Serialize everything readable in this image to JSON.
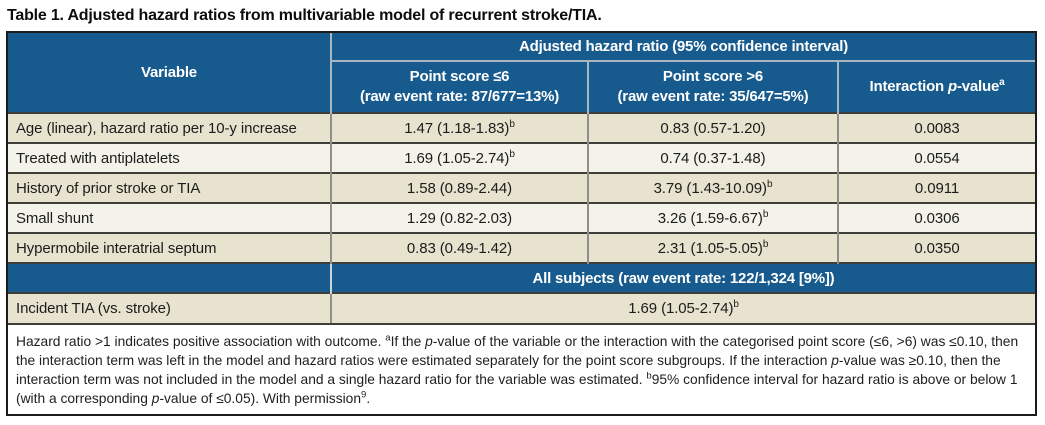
{
  "title": "Table 1. Adjusted hazard ratios from multivariable model of recurrent stroke/TIA.",
  "colors": {
    "header_blue": "#175a8e",
    "row_beige": "#e7e3ce",
    "row_offwhite": "#f4f3ea",
    "grid_dark": "#3f3f3a",
    "grid_gray": "#8e8e8a",
    "header_grid": "#a9b6c0",
    "banner_split": "#ccd3d8",
    "outer_border": "#1c1c1c"
  },
  "header": {
    "variable": "Variable",
    "group": "Adjusted hazard ratio (95% confidence interval)",
    "sub1_line1": "Point score ≤6",
    "sub1_line2": "(raw event rate: 87/677=13%)",
    "sub2_line1": "Point score >6",
    "sub2_line2": "(raw event rate: 35/647=5%)",
    "sub3_segments": [
      {
        "t": "Interaction "
      },
      {
        "t": "p",
        "i": true
      },
      {
        "t": "-value"
      },
      {
        "t": "a",
        "sup": true
      }
    ]
  },
  "rows": [
    {
      "variable": "Age (linear), hazard ratio per 10-y increase",
      "le6": [
        {
          "t": "1.47 (1.18-1.83)"
        },
        {
          "t": "b",
          "sup": true
        }
      ],
      "gt6": [
        {
          "t": "0.83 (0.57-1.20)"
        }
      ],
      "p": "0.0083"
    },
    {
      "variable": "Treated with antiplatelets",
      "le6": [
        {
          "t": "1.69 (1.05-2.74)"
        },
        {
          "t": "b",
          "sup": true
        }
      ],
      "gt6": [
        {
          "t": "0.74 (0.37-1.48)"
        }
      ],
      "p": "0.0554"
    },
    {
      "variable": "History of prior stroke or TIA",
      "le6": [
        {
          "t": "1.58 (0.89-2.44)"
        }
      ],
      "gt6": [
        {
          "t": "3.79 (1.43-10.09)"
        },
        {
          "t": "b",
          "sup": true
        }
      ],
      "p": "0.0911"
    },
    {
      "variable": "Small shunt",
      "le6": [
        {
          "t": "1.29 (0.82-2.03)"
        }
      ],
      "gt6": [
        {
          "t": "3.26 (1.59-6.67)"
        },
        {
          "t": "b",
          "sup": true
        }
      ],
      "p": "0.0306"
    },
    {
      "variable": "Hypermobile interatrial septum",
      "le6": [
        {
          "t": "0.83 (0.49-1.42)"
        }
      ],
      "gt6": [
        {
          "t": "2.31 (1.05-5.05)"
        },
        {
          "t": "b",
          "sup": true
        }
      ],
      "p": "0.0350"
    }
  ],
  "all_subjects": "All subjects (raw event rate: 122/1,324 [9%])",
  "incident": {
    "variable": "Incident TIA (vs. stroke)",
    "value": [
      {
        "t": "1.69 (1.05-2.74)"
      },
      {
        "t": "b",
        "sup": true
      }
    ]
  },
  "footnote": {
    "segments": [
      {
        "t": "Hazard ratio >1 indicates positive association with outcome. "
      },
      {
        "t": "a",
        "sup": true
      },
      {
        "t": "If the "
      },
      {
        "t": "p",
        "i": true
      },
      {
        "t": "-value of the variable or the interaction with the categorised point score (≤6, >6) was ≤0.10, then the interaction term was left in the model and hazard ratios were estimated separately for the point score subgroups. If the interaction "
      },
      {
        "t": "p",
        "i": true
      },
      {
        "t": "-value was ≥0.10, then the interaction term was not included in the model and a single hazard ratio for the variable was estimated. "
      },
      {
        "t": "b",
        "sup": true
      },
      {
        "t": "95% confidence interval for hazard ratio is above or below 1 (with a corresponding "
      },
      {
        "t": "p",
        "i": true
      },
      {
        "t": "-value of ≤0.05). With permission"
      },
      {
        "t": "9",
        "sup": true
      },
      {
        "t": "."
      }
    ]
  }
}
